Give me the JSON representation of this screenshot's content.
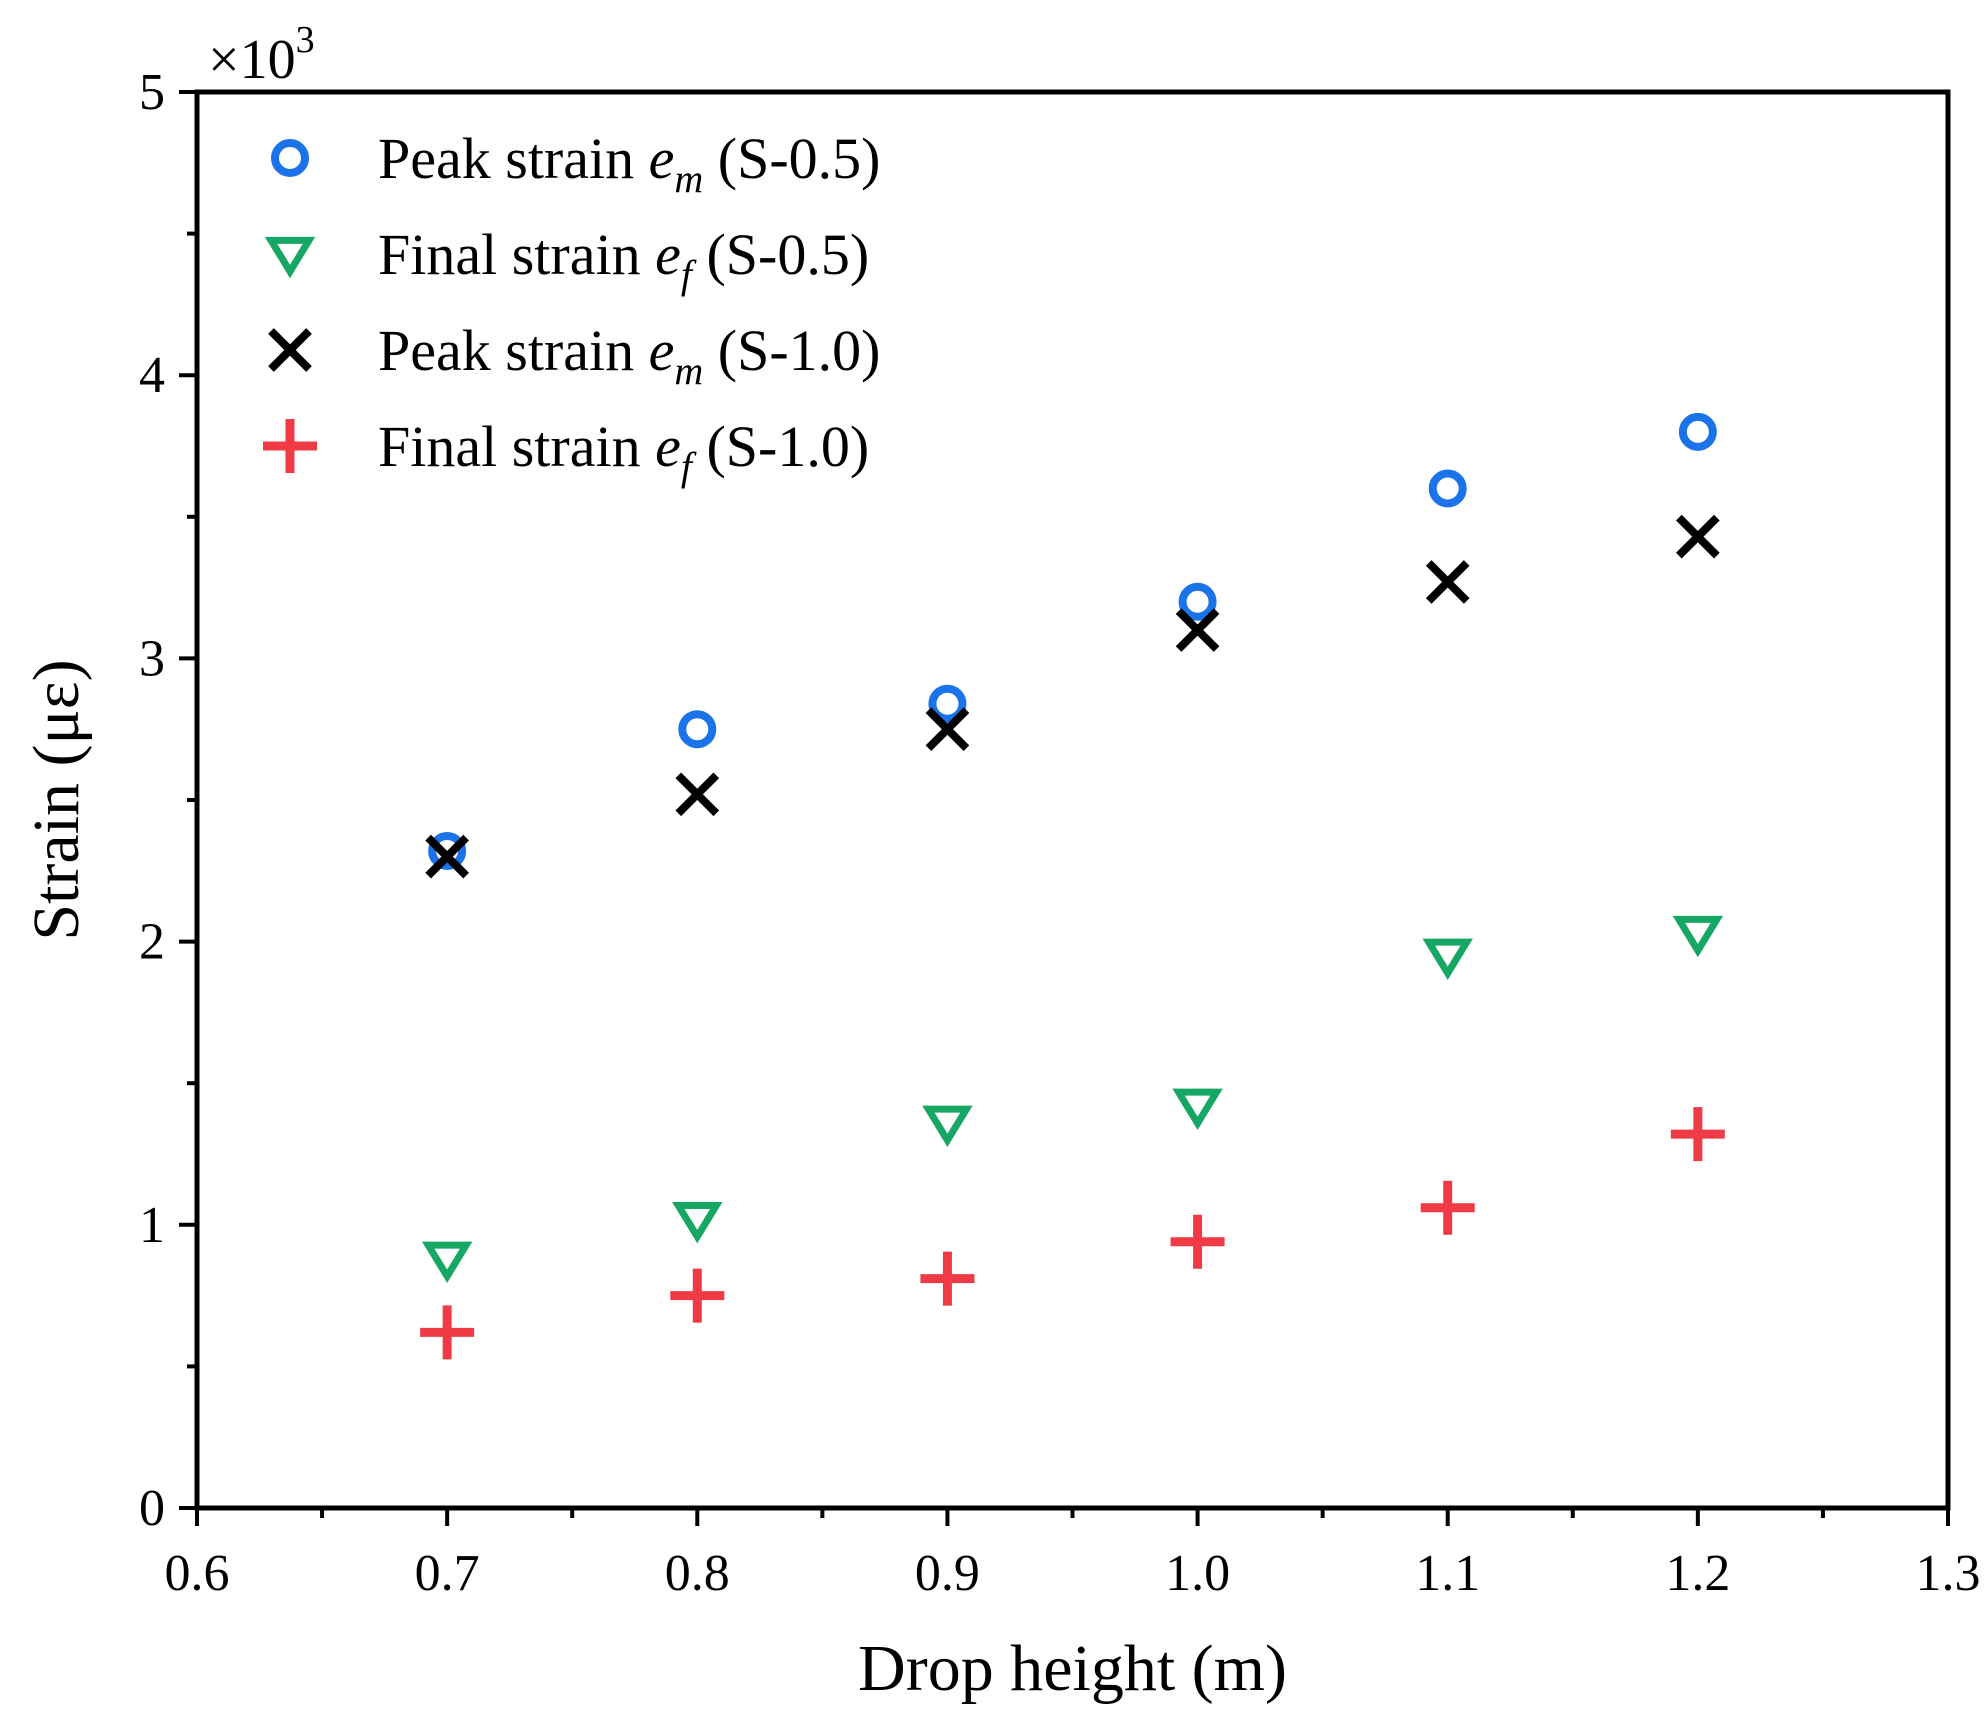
{
  "chart_data": {
    "type": "scatter",
    "xlabel": "Drop height (m)",
    "ylabel": "Strain (με)",
    "xlim": [
      0.6,
      1.3
    ],
    "ylim": [
      0,
      5
    ],
    "x_ticks": [
      "0.6",
      "0.7",
      "0.8",
      "0.9",
      "1.0",
      "1.1",
      "1.2",
      "1.3"
    ],
    "y_ticks": [
      "0",
      "1",
      "2",
      "3",
      "4",
      "5"
    ],
    "y_multiplier": {
      "base": "×10",
      "exponent": "3"
    },
    "grid": false,
    "legend_position": "top-left",
    "series": [
      {
        "label_pre": "Peak strain ",
        "label_var": "e",
        "label_sub": "m",
        "label_post": " (S-0.5)",
        "marker": "circle-open",
        "color": "#1a73e8",
        "x": [
          0.7,
          0.8,
          0.9,
          1.0,
          1.1,
          1.2
        ],
        "y": [
          2.32,
          2.75,
          2.84,
          3.2,
          3.6,
          3.8
        ]
      },
      {
        "label_pre": "Final strain ",
        "label_var": "e",
        "label_sub": "f",
        "label_post": " (S-0.5)",
        "marker": "triangle-down-open",
        "color": "#16a765",
        "x": [
          0.7,
          0.8,
          0.9,
          1.0,
          1.1,
          1.2
        ],
        "y": [
          0.88,
          1.02,
          1.36,
          1.42,
          1.95,
          2.03
        ]
      },
      {
        "label_pre": "Peak strain ",
        "label_var": "e",
        "label_sub": "m",
        "label_post": " (S-1.0)",
        "marker": "x",
        "color": "#000000",
        "x": [
          0.7,
          0.8,
          0.9,
          1.0,
          1.1,
          1.2
        ],
        "y": [
          2.3,
          2.52,
          2.75,
          3.1,
          3.27,
          3.43
        ]
      },
      {
        "label_pre": "Final strain ",
        "label_var": "e",
        "label_sub": "f",
        "label_post": " (S-1.0)",
        "marker": "plus",
        "color": "#f03a45",
        "x": [
          0.7,
          0.8,
          0.9,
          1.0,
          1.1,
          1.2
        ],
        "y": [
          0.62,
          0.75,
          0.81,
          0.94,
          1.06,
          1.32
        ]
      }
    ]
  }
}
